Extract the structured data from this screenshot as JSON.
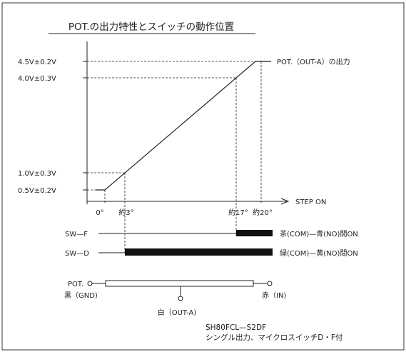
{
  "title": "POT.の出力特性とスイッチの動作位置",
  "y_labels": [
    "4.5V±0.2V",
    "4.0V±0.3V",
    "1.0V±0.3V",
    "0.5V±0.2V"
  ],
  "x_labels": [
    "0°",
    "約3°",
    "約17°",
    "約20°"
  ],
  "x_axis_label": "STEP ON",
  "output_label": "POT.（OUT-A）の出力",
  "switches": [
    {
      "name": "SW—F",
      "desc": "茶(COM)—青(NO)間ON"
    },
    {
      "name": "SW—D",
      "desc": "緑(COM)—黄(NO)間ON"
    }
  ],
  "pot": {
    "label": "POT.",
    "left_terminal": "黒（GND)",
    "right_terminal": "赤（IN)",
    "wiper": "白（OUT-A)"
  },
  "model": "SH80FCL—S2DF",
  "model_desc": "シングル出力、マイクロスイッチD・F付",
  "colors": {
    "line": "#222222",
    "background": "#ffffff"
  }
}
